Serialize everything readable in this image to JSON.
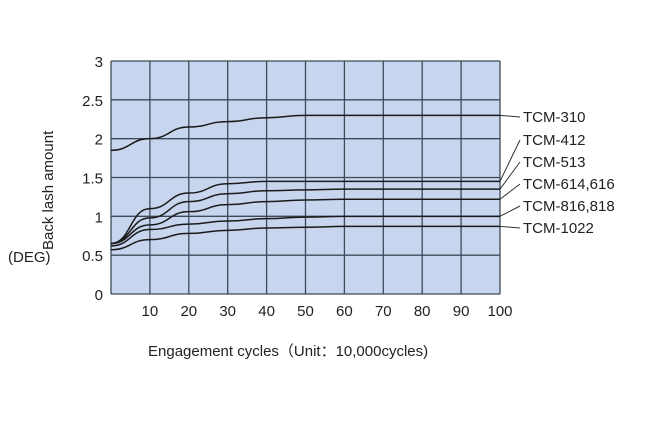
{
  "chart_data": {
    "type": "line",
    "title": "",
    "xlabel": "Engagement cycles（Unit：10,000cycles)",
    "ylabel": "Back lash amount",
    "ylabel_unit": "(DEG)",
    "xlim": [
      0,
      100
    ],
    "ylim": [
      0,
      3
    ],
    "xticks": [
      "10",
      "20",
      "30",
      "40",
      "50",
      "60",
      "70",
      "80",
      "90",
      "100"
    ],
    "yticks": [
      "0",
      "0.5",
      "1",
      "1.5",
      "2",
      "2.5",
      "3"
    ],
    "grid": true,
    "x": [
      0,
      10,
      20,
      30,
      40,
      50,
      60,
      70,
      80,
      90,
      100
    ],
    "series": [
      {
        "name": "TCM-310",
        "values": [
          1.85,
          2.0,
          2.15,
          2.22,
          2.27,
          2.3,
          2.3,
          2.3,
          2.3,
          2.3,
          2.3
        ]
      },
      {
        "name": "TCM-412",
        "values": [
          0.65,
          1.1,
          1.3,
          1.42,
          1.45,
          1.45,
          1.45,
          1.45,
          1.45,
          1.45,
          1.45
        ]
      },
      {
        "name": "TCM-513",
        "values": [
          0.65,
          0.98,
          1.19,
          1.29,
          1.33,
          1.34,
          1.35,
          1.35,
          1.35,
          1.35,
          1.35
        ]
      },
      {
        "name": "TCM-614,616",
        "values": [
          0.65,
          0.89,
          1.06,
          1.15,
          1.19,
          1.21,
          1.22,
          1.22,
          1.22,
          1.22,
          1.22
        ]
      },
      {
        "name": "TCM-816,818",
        "values": [
          0.62,
          0.83,
          0.9,
          0.94,
          0.97,
          0.99,
          1.0,
          1.0,
          1.0,
          1.0,
          1.0
        ]
      },
      {
        "name": "TCM-1022",
        "values": [
          0.57,
          0.7,
          0.78,
          0.82,
          0.85,
          0.86,
          0.87,
          0.87,
          0.87,
          0.87,
          0.87
        ]
      }
    ],
    "legend_placement": "right",
    "colors": {
      "plot_bg": "#c7d6ee",
      "grid": "#3d4a58",
      "line": "#1a1a1a"
    }
  }
}
